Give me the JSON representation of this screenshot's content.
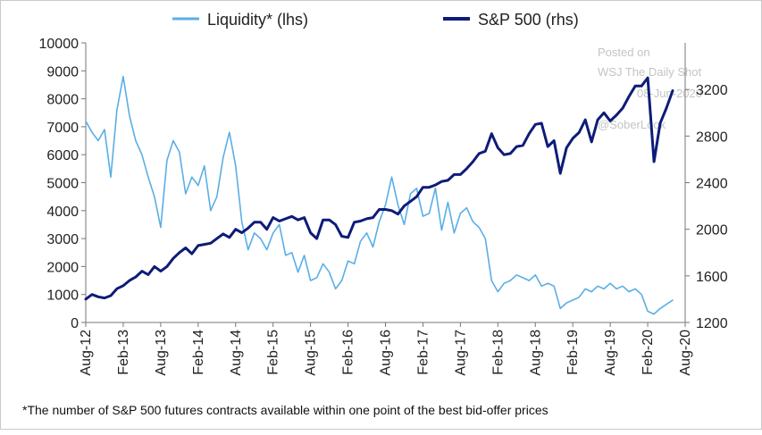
{
  "chart_data": {
    "type": "line",
    "title": "",
    "footnote": "*The number of S&P 500 futures contracts available within one point of the best bid-offer prices",
    "watermark": [
      "Posted on",
      "WSJ The Daily Shot",
      "08-Jun-2020",
      "@SoberLook"
    ],
    "x_tick_labels": [
      "Aug-12",
      "Feb-13",
      "Aug-13",
      "Feb-14",
      "Aug-14",
      "Feb-15",
      "Aug-15",
      "Feb-16",
      "Aug-16",
      "Feb-17",
      "Aug-17",
      "Feb-18",
      "Aug-18",
      "Feb-19",
      "Aug-19",
      "Feb-20",
      "Aug-20"
    ],
    "x_range": [
      "2012-08",
      "2020-08"
    ],
    "left_axis": {
      "label": "lhs",
      "ylim": [
        0,
        10000
      ],
      "ticks": [
        "0",
        "1000",
        "2000",
        "3000",
        "4000",
        "5000",
        "6000",
        "7000",
        "8000",
        "9000",
        "10000"
      ]
    },
    "right_axis": {
      "label": "rhs",
      "ylim": [
        1200,
        3600
      ],
      "ticks": [
        "1200",
        "1600",
        "2000",
        "2400",
        "2800",
        "3200"
      ]
    },
    "legend": {
      "placement": "top",
      "entries": [
        "Liquidity* (lhs)",
        "S&P 500 (rhs)"
      ]
    },
    "grid": false,
    "colors": {
      "liquidity": "#5aaee6",
      "sp500": "#0d1c78"
    },
    "series": [
      {
        "name": "Liquidity* (lhs)",
        "axis": "left",
        "x": [
          "2012-08",
          "2012-09",
          "2012-10",
          "2012-11",
          "2012-12",
          "2013-01",
          "2013-02",
          "2013-03",
          "2013-04",
          "2013-05",
          "2013-06",
          "2013-07",
          "2013-08",
          "2013-09",
          "2013-10",
          "2013-11",
          "2013-12",
          "2014-01",
          "2014-02",
          "2014-03",
          "2014-04",
          "2014-05",
          "2014-06",
          "2014-07",
          "2014-08",
          "2014-09",
          "2014-10",
          "2014-11",
          "2014-12",
          "2015-01",
          "2015-02",
          "2015-03",
          "2015-04",
          "2015-05",
          "2015-06",
          "2015-07",
          "2015-08",
          "2015-09",
          "2015-10",
          "2015-11",
          "2015-12",
          "2016-01",
          "2016-02",
          "2016-03",
          "2016-04",
          "2016-05",
          "2016-06",
          "2016-07",
          "2016-08",
          "2016-09",
          "2016-10",
          "2016-11",
          "2016-12",
          "2017-01",
          "2017-02",
          "2017-03",
          "2017-04",
          "2017-05",
          "2017-06",
          "2017-07",
          "2017-08",
          "2017-09",
          "2017-10",
          "2017-11",
          "2017-12",
          "2018-01",
          "2018-02",
          "2018-03",
          "2018-04",
          "2018-05",
          "2018-06",
          "2018-07",
          "2018-08",
          "2018-09",
          "2018-10",
          "2018-11",
          "2018-12",
          "2019-01",
          "2019-02",
          "2019-03",
          "2019-04",
          "2019-05",
          "2019-06",
          "2019-07",
          "2019-08",
          "2019-09",
          "2019-10",
          "2019-11",
          "2019-12",
          "2020-01",
          "2020-02",
          "2020-03",
          "2020-04",
          "2020-05",
          "2020-06"
        ],
        "values": [
          7200,
          6800,
          6500,
          6900,
          5200,
          7600,
          8800,
          7400,
          6500,
          6000,
          5200,
          4500,
          3400,
          5800,
          6500,
          6100,
          4600,
          5200,
          4900,
          5600,
          4000,
          4500,
          5900,
          6800,
          5600,
          3600,
          2600,
          3200,
          3000,
          2600,
          3200,
          3500,
          2400,
          2500,
          1800,
          2400,
          1500,
          1600,
          2100,
          1800,
          1200,
          1500,
          2200,
          2100,
          2900,
          3200,
          2700,
          3600,
          4200,
          5200,
          4200,
          3500,
          4600,
          4800,
          3800,
          3900,
          4800,
          3300,
          4300,
          3200,
          3900,
          4100,
          3600,
          3400,
          3000,
          1500,
          1100,
          1400,
          1500,
          1700,
          1600,
          1500,
          1700,
          1300,
          1400,
          1300,
          500,
          700,
          800,
          900,
          1200,
          1100,
          1300,
          1200,
          1400,
          1200,
          1300,
          1100,
          1200,
          1000,
          400,
          300,
          500,
          650,
          800
        ]
      },
      {
        "name": "S&P 500 (rhs)",
        "axis": "right",
        "x": [
          "2012-08",
          "2012-09",
          "2012-10",
          "2012-11",
          "2012-12",
          "2013-01",
          "2013-02",
          "2013-03",
          "2013-04",
          "2013-05",
          "2013-06",
          "2013-07",
          "2013-08",
          "2013-09",
          "2013-10",
          "2013-11",
          "2013-12",
          "2014-01",
          "2014-02",
          "2014-03",
          "2014-04",
          "2014-05",
          "2014-06",
          "2014-07",
          "2014-08",
          "2014-09",
          "2014-10",
          "2014-11",
          "2014-12",
          "2015-01",
          "2015-02",
          "2015-03",
          "2015-04",
          "2015-05",
          "2015-06",
          "2015-07",
          "2015-08",
          "2015-09",
          "2015-10",
          "2015-11",
          "2015-12",
          "2016-01",
          "2016-02",
          "2016-03",
          "2016-04",
          "2016-05",
          "2016-06",
          "2016-07",
          "2016-08",
          "2016-09",
          "2016-10",
          "2016-11",
          "2016-12",
          "2017-01",
          "2017-02",
          "2017-03",
          "2017-04",
          "2017-05",
          "2017-06",
          "2017-07",
          "2017-08",
          "2017-09",
          "2017-10",
          "2017-11",
          "2017-12",
          "2018-01",
          "2018-02",
          "2018-03",
          "2018-04",
          "2018-05",
          "2018-06",
          "2018-07",
          "2018-08",
          "2018-09",
          "2018-10",
          "2018-11",
          "2018-12",
          "2019-01",
          "2019-02",
          "2019-03",
          "2019-04",
          "2019-05",
          "2019-06",
          "2019-07",
          "2019-08",
          "2019-09",
          "2019-10",
          "2019-11",
          "2019-12",
          "2020-01",
          "2020-02",
          "2020-03",
          "2020-04",
          "2020-05",
          "2020-06"
        ],
        "values": [
          1400,
          1440,
          1420,
          1410,
          1430,
          1490,
          1515,
          1560,
          1590,
          1640,
          1610,
          1680,
          1640,
          1680,
          1750,
          1800,
          1840,
          1790,
          1860,
          1870,
          1880,
          1920,
          1960,
          1930,
          2000,
          1970,
          2010,
          2060,
          2060,
          2000,
          2100,
          2070,
          2090,
          2110,
          2080,
          2100,
          1970,
          1920,
          2080,
          2080,
          2040,
          1940,
          1930,
          2060,
          2070,
          2090,
          2100,
          2170,
          2170,
          2160,
          2130,
          2200,
          2240,
          2280,
          2360,
          2360,
          2380,
          2410,
          2420,
          2470,
          2470,
          2520,
          2580,
          2650,
          2670,
          2820,
          2700,
          2640,
          2650,
          2710,
          2720,
          2820,
          2900,
          2910,
          2710,
          2760,
          2480,
          2700,
          2780,
          2830,
          2940,
          2750,
          2940,
          3000,
          2930,
          2980,
          3040,
          3140,
          3230,
          3230,
          3300,
          2580,
          2910,
          3040,
          3190
        ]
      }
    ]
  }
}
